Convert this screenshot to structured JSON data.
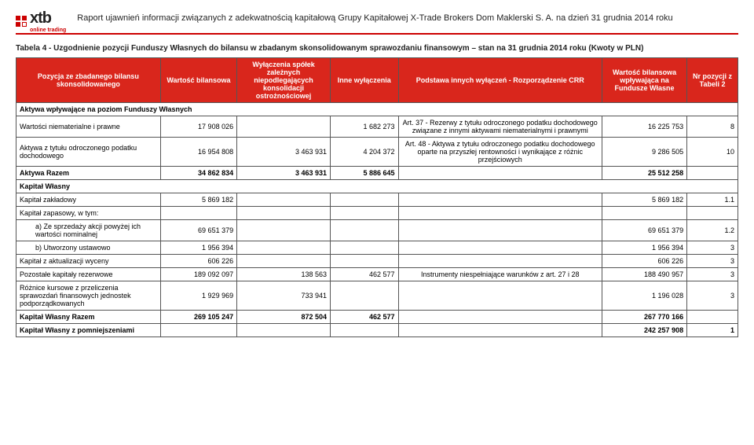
{
  "header": {
    "logo_text": "xtb",
    "logo_sub": "online trading",
    "title_line": "Raport ujawnień informacji związanych z adekwatnością kapitałową Grupy Kapitałowej X-Trade Brokers Dom Maklerski S. A. na dzień 31 grudnia 2014 roku"
  },
  "table": {
    "title": "Tabela 4 - Uzgodnienie pozycji Funduszy Własnych do bilansu w zbadanym skonsolidowanym sprawozdaniu finansowym – stan na 31 grudnia 2014 roku (Kwoty w PLN)",
    "columns": {
      "c0": "Pozycja ze zbadanego bilansu skonsolidowanego",
      "c1": "Wartość bilansowa",
      "c2": "Wyłączenia spółek zależnych niepodlegających konsolidacji ostrożnościowej",
      "c3": "Inne wyłączenia",
      "c4": "Podstawa innych wyłączeń - Rozporządzenie CRR",
      "c5": "Wartość bilansowa wpływająca na Fundusze Własne",
      "c6": "Nr pozycji z Tabeli 2"
    },
    "section_aktywa": "Aktywa wpływające na poziom Funduszy Własnych",
    "rows_aktywa": [
      {
        "label": "Wartości niematerialne i prawne",
        "v1": "17 908 026",
        "v2": "",
        "v3": "1 682 273",
        "basis": "Art. 37 - Rezerwy z tytułu odroczonego podatku dochodowego związane z innymi aktywami niematerialnymi i prawnymi",
        "v5": "16 225 753",
        "nr": "8"
      },
      {
        "label": "Aktywa z tytułu odroczonego podatku dochodowego",
        "v1": "16 954 808",
        "v2": "3 463 931",
        "v3": "4 204 372",
        "basis": "Art. 48 - Aktywa z tytułu odroczonego podatku dochodowego oparte na przyszłej rentowności i wynikające z różnic przejściowych",
        "v5": "9 286 505",
        "nr": "10"
      }
    ],
    "aktywa_razem": {
      "label": "Aktywa Razem",
      "v1": "34 862 834",
      "v2": "3 463 931",
      "v3": "5 886 645",
      "basis": "",
      "v5": "25 512 258",
      "nr": ""
    },
    "section_kapital": "Kapitał Własny",
    "rows_kapital": [
      {
        "label": "Kapitał zakładowy",
        "v1": "5 869 182",
        "v2": "",
        "v3": "",
        "basis": "",
        "v5": "5 869 182",
        "nr": "1.1",
        "indent": false
      },
      {
        "label": "Kapitał zapasowy, w tym:",
        "v1": "",
        "v2": "",
        "v3": "",
        "basis": "",
        "v5": "",
        "nr": "",
        "indent": false
      },
      {
        "label": "a) Ze sprzedaży akcji powyżej ich wartości nominalnej",
        "v1": "69 651 379",
        "v2": "",
        "v3": "",
        "basis": "",
        "v5": "69 651 379",
        "nr": "1.2",
        "indent": true
      },
      {
        "label": "b) Utworzony ustawowo",
        "v1": "1 956 394",
        "v2": "",
        "v3": "",
        "basis": "",
        "v5": "1 956 394",
        "nr": "3",
        "indent": true
      },
      {
        "label": "Kapitał z aktualizacji wyceny",
        "v1": "606 226",
        "v2": "",
        "v3": "",
        "basis": "",
        "v5": "606 226",
        "nr": "3",
        "indent": false
      },
      {
        "label": "Pozostałe kapitały rezerwowe",
        "v1": "189 092 097",
        "v2": "138 563",
        "v3": "462 577",
        "basis": "Instrumenty niespełniające warunków z art. 27 i 28",
        "v5": "188 490 957",
        "nr": "3",
        "indent": false
      },
      {
        "label": "Różnice kursowe z przeliczenia sprawozdań finansowych jednostek podporządkowanych",
        "v1": "1 929 969",
        "v2": "733 941",
        "v3": "",
        "basis": "",
        "v5": "1 196 028",
        "nr": "3",
        "indent": false
      }
    ],
    "kapital_razem": {
      "label": "Kapitał Własny Razem",
      "v1": "269 105 247",
      "v2": "872 504",
      "v3": "462 577",
      "basis": "",
      "v5": "267 770 166",
      "nr": ""
    },
    "kapital_pomn": {
      "label": "Kapitał Własny z pomniejszeniami",
      "v1": "",
      "v2": "",
      "v3": "",
      "basis": "",
      "v5": "242 257 908",
      "nr": "1"
    }
  }
}
